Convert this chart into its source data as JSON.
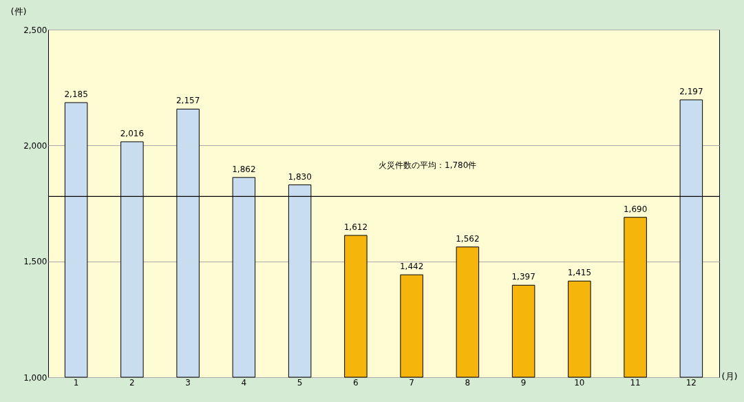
{
  "chart_data": {
    "type": "bar",
    "xlabel": "(月)",
    "ylabel": "(件)",
    "categories": [
      "1",
      "2",
      "3",
      "4",
      "5",
      "6",
      "7",
      "8",
      "9",
      "10",
      "11",
      "12"
    ],
    "values": [
      2185,
      2016,
      2157,
      1862,
      1830,
      1612,
      1442,
      1562,
      1397,
      1415,
      1690,
      2197
    ],
    "colors": [
      "#c9ddf0",
      "#c9ddf0",
      "#c9ddf0",
      "#c9ddf0",
      "#c9ddf0",
      "#f5b50a",
      "#f5b50a",
      "#f5b50a",
      "#f5b50a",
      "#f5b50a",
      "#f5b50a",
      "#c9ddf0"
    ],
    "ylim": [
      1000,
      2500
    ],
    "yticks": [
      {
        "value": 1000,
        "label": "1,000"
      },
      {
        "value": 1500,
        "label": "1,500"
      },
      {
        "value": 2000,
        "label": "2,000"
      },
      {
        "value": 2500,
        "label": "2,500"
      }
    ],
    "value_labels": [
      "2,185",
      "2,016",
      "2,157",
      "1,862",
      "1,830",
      "1,612",
      "1,442",
      "1,562",
      "1,397",
      "1,415",
      "1,690",
      "2,197"
    ],
    "grid": "y",
    "ref_lines": [
      {
        "axis": "y",
        "value": 1780,
        "label": "火災件数の平均：1,780件",
        "color": "#000000"
      }
    ]
  }
}
